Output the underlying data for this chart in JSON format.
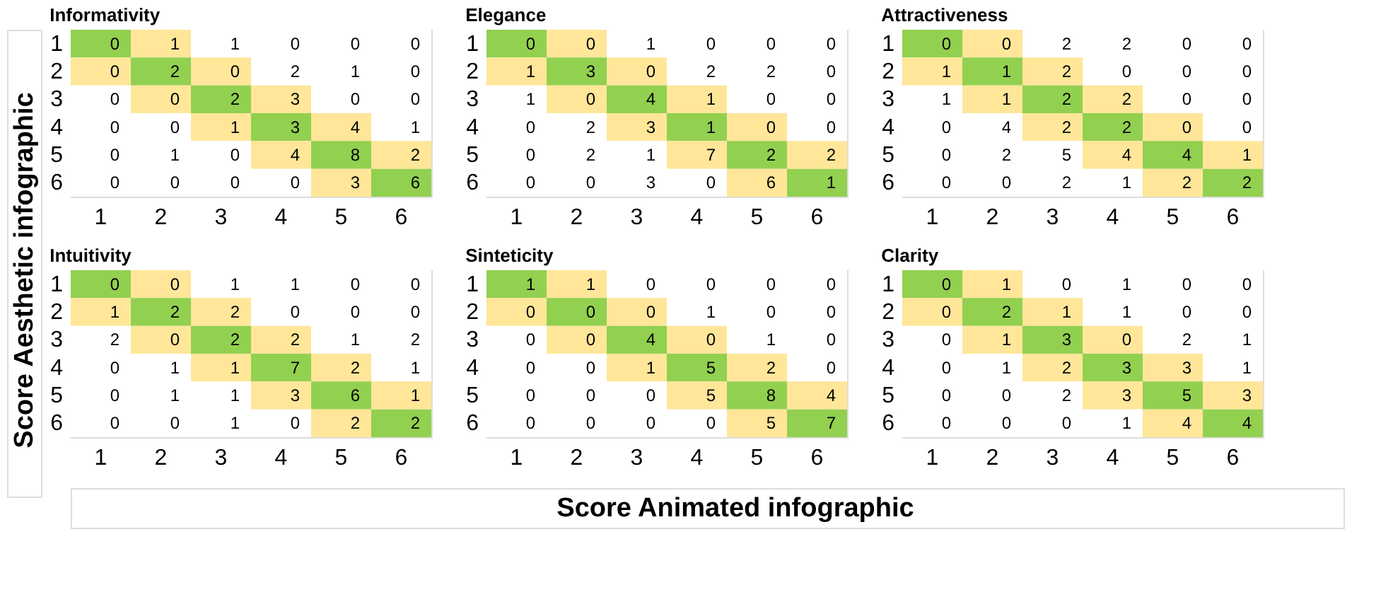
{
  "chart_data": [
    {
      "type": "heatmap",
      "title": "Informativity",
      "ylabel": "Score Aesthetic infographic",
      "categories": [
        "1",
        "2",
        "3",
        "4",
        "5",
        "6"
      ],
      "y_categories": [
        "1",
        "2",
        "3",
        "4",
        "5",
        "6"
      ],
      "colors": [
        "#92d050",
        "#ffe699",
        "#ffffff"
      ],
      "data_labels": true,
      "cells": [
        [
          0,
          1,
          1,
          0,
          0,
          0
        ],
        [
          0,
          2,
          0,
          2,
          1,
          0
        ],
        [
          0,
          0,
          2,
          3,
          0,
          0
        ],
        [
          0,
          0,
          1,
          3,
          4,
          1
        ],
        [
          0,
          1,
          0,
          4,
          8,
          2
        ],
        [
          0,
          0,
          0,
          0,
          3,
          6
        ]
      ]
    },
    {
      "type": "heatmap",
      "title": "Elegance",
      "categories": [
        "1",
        "2",
        "3",
        "4",
        "5",
        "6"
      ],
      "y_categories": [
        "1",
        "2",
        "3",
        "4",
        "5",
        "6"
      ],
      "colors": [
        "#92d050",
        "#ffe699",
        "#ffffff"
      ],
      "data_labels": true,
      "cells": [
        [
          0,
          0,
          1,
          0,
          0,
          0
        ],
        [
          1,
          3,
          0,
          2,
          2,
          0
        ],
        [
          1,
          0,
          4,
          1,
          0,
          0
        ],
        [
          0,
          2,
          3,
          1,
          0,
          0
        ],
        [
          0,
          2,
          1,
          7,
          2,
          2
        ],
        [
          0,
          0,
          3,
          0,
          6,
          1
        ]
      ]
    },
    {
      "type": "heatmap",
      "title": "Attractiveness",
      "categories": [
        "1",
        "2",
        "3",
        "4",
        "5",
        "6"
      ],
      "y_categories": [
        "1",
        "2",
        "3",
        "4",
        "5",
        "6"
      ],
      "colors": [
        "#92d050",
        "#ffe699",
        "#ffffff"
      ],
      "data_labels": true,
      "cells": [
        [
          0,
          0,
          2,
          2,
          0,
          0
        ],
        [
          1,
          1,
          2,
          0,
          0,
          0
        ],
        [
          1,
          1,
          2,
          2,
          0,
          0
        ],
        [
          0,
          4,
          2,
          2,
          0,
          0
        ],
        [
          0,
          2,
          5,
          4,
          4,
          1
        ],
        [
          0,
          0,
          2,
          1,
          2,
          2
        ]
      ]
    },
    {
      "type": "heatmap",
      "title": "Intuitivity",
      "categories": [
        "1",
        "2",
        "3",
        "4",
        "5",
        "6"
      ],
      "y_categories": [
        "1",
        "2",
        "3",
        "4",
        "5",
        "6"
      ],
      "colors": [
        "#92d050",
        "#ffe699",
        "#ffffff"
      ],
      "data_labels": true,
      "cells": [
        [
          0,
          0,
          1,
          1,
          0,
          0
        ],
        [
          1,
          2,
          2,
          0,
          0,
          0
        ],
        [
          2,
          0,
          2,
          2,
          1,
          2
        ],
        [
          0,
          1,
          1,
          7,
          2,
          1
        ],
        [
          0,
          1,
          1,
          3,
          6,
          1
        ],
        [
          0,
          0,
          1,
          0,
          2,
          2
        ]
      ]
    },
    {
      "type": "heatmap",
      "title": "Sinteticity",
      "xlabel": "Score Animated infographic",
      "categories": [
        "1",
        "2",
        "3",
        "4",
        "5",
        "6"
      ],
      "y_categories": [
        "1",
        "2",
        "3",
        "4",
        "5",
        "6"
      ],
      "colors": [
        "#92d050",
        "#ffe699",
        "#ffffff"
      ],
      "data_labels": true,
      "cells": [
        [
          1,
          1,
          0,
          0,
          0,
          0
        ],
        [
          0,
          0,
          0,
          1,
          0,
          0
        ],
        [
          0,
          0,
          4,
          0,
          1,
          0
        ],
        [
          0,
          0,
          1,
          5,
          2,
          0
        ],
        [
          0,
          0,
          0,
          5,
          8,
          4
        ],
        [
          0,
          0,
          0,
          0,
          5,
          7
        ]
      ]
    },
    {
      "type": "heatmap",
      "title": "Clarity",
      "categories": [
        "1",
        "2",
        "3",
        "4",
        "5",
        "6"
      ],
      "y_categories": [
        "1",
        "2",
        "3",
        "4",
        "5",
        "6"
      ],
      "colors": [
        "#92d050",
        "#ffe699",
        "#ffffff"
      ],
      "data_labels": true,
      "cells": [
        [
          0,
          1,
          0,
          1,
          0,
          0
        ],
        [
          0,
          2,
          1,
          1,
          0,
          0
        ],
        [
          0,
          1,
          3,
          0,
          2,
          1
        ],
        [
          0,
          1,
          2,
          3,
          3,
          1
        ],
        [
          0,
          0,
          2,
          3,
          5,
          3
        ],
        [
          0,
          0,
          0,
          1,
          4,
          4
        ]
      ]
    }
  ]
}
